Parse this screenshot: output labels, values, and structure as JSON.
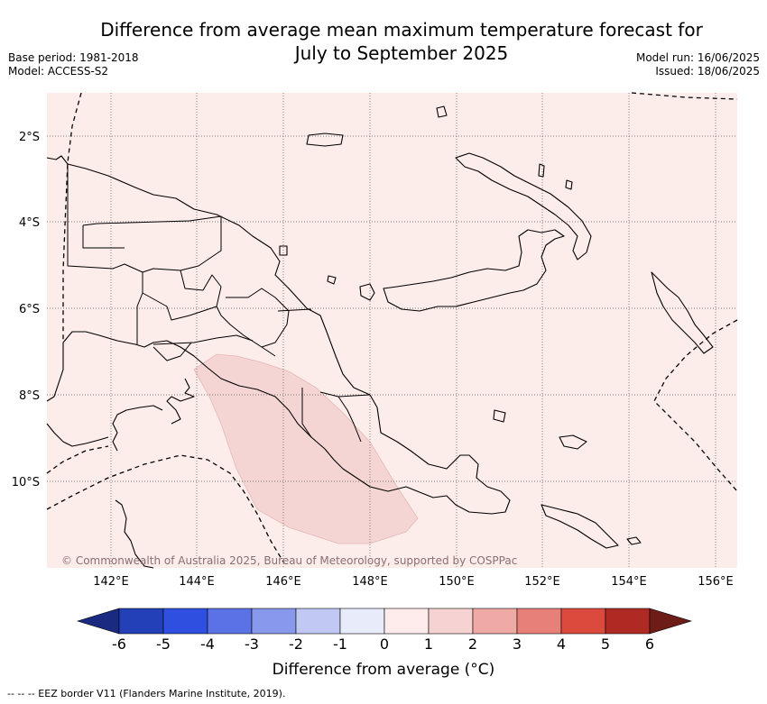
{
  "title_line1": "Difference from average mean maximum temperature forecast for",
  "title_line2": "July to September 2025",
  "base_period": "Base period: 1981-2018",
  "model": "Model: ACCESS-S2",
  "model_run": "Model run: 16/06/2025",
  "issued": "Issued: 18/06/2025",
  "lat_labels": [
    "2°S",
    "4°S",
    "6°S",
    "8°S",
    "10°S"
  ],
  "lon_labels": [
    "142°E",
    "144°E",
    "146°E",
    "148°E",
    "150°E",
    "152°E",
    "154°E",
    "156°E"
  ],
  "copyright": "© Commonwealth of Australia 2025, Bureau of Meteorology, supported by COSPPac",
  "colorbar": {
    "ticks": [
      "-6",
      "-5",
      "-4",
      "-3",
      "-2",
      "-1",
      "0",
      "1",
      "2",
      "3",
      "4",
      "5",
      "6"
    ],
    "colors": [
      "#1a2a80",
      "#2340b8",
      "#2e4fe0",
      "#5a72e6",
      "#8898ec",
      "#c2c8f4",
      "#e8ecfa",
      "#fdeceb",
      "#f6d3d2",
      "#efaaa6",
      "#e68078",
      "#dc4a3e",
      "#b02a24",
      "#6e1c18"
    ],
    "label": "Difference from average (°C)"
  },
  "footnote": "--  --  -- EEZ border V11 (Flanders Marine Institute, 2019).",
  "map_colors": {
    "background": "#fcecea",
    "anomaly_region": "#f5d5d4"
  }
}
